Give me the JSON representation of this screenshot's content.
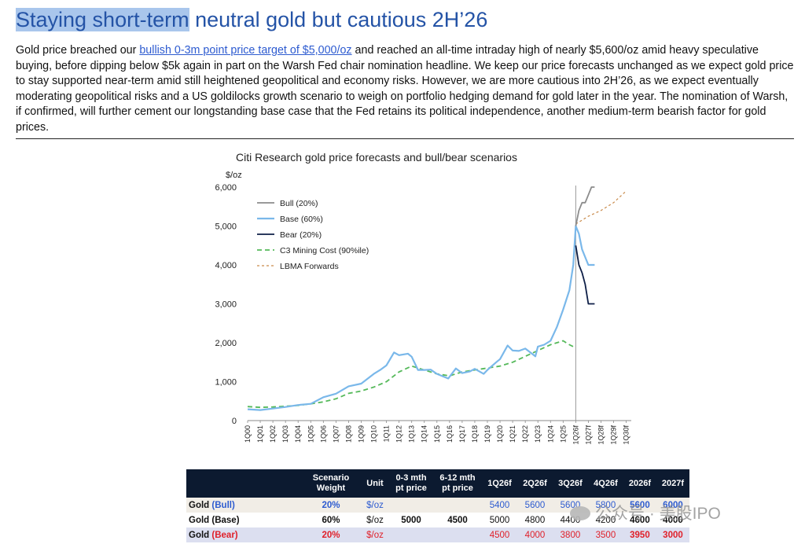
{
  "title": {
    "highlight": "Staying short-term",
    "rest": " neutral gold but cautious 2H’26"
  },
  "paragraph": {
    "pre": "Gold price breached our ",
    "link": "bullish 0-3m point price target of $5,000/oz",
    "post": " and reached an all-time intraday high of nearly $5,600/oz amid heavy speculative buying, before dipping below $5k again in part on the Warsh Fed chair nomination headline. We keep our price forecasts unchanged as we expect gold price to stay supported near-term amid still heightened geopolitical and economy risks. However, we are more cautious into 2H’26, as we expect eventually moderating geopolitical risks and a US goldilocks growth scenario to weigh on portfolio hedging demand for gold later in the year. The nomination of Warsh, if confirmed, will further cement our longstanding base case that the Fed retains its political independence, another medium-term bearish factor for gold prices."
  },
  "chart_data": {
    "type": "line",
    "title": "Citi Research gold price forecasts and bull/bear scenarios",
    "ylabel": "$/oz",
    "ylim": [
      0,
      6000
    ],
    "yticks": [
      "0",
      "1,000",
      "2,000",
      "3,000",
      "4,000",
      "5,000",
      "6,000"
    ],
    "x_tick_labels": [
      "1Q00",
      "1Q01",
      "1Q02",
      "1Q03",
      "1Q04",
      "1Q05",
      "1Q06",
      "1Q07",
      "1Q08",
      "1Q09",
      "1Q10",
      "1Q11",
      "1Q12",
      "1Q13",
      "1Q14",
      "1Q15",
      "1Q16",
      "1Q17",
      "1Q18",
      "1Q19",
      "1Q20",
      "1Q21",
      "1Q22",
      "1Q23",
      "1Q24",
      "1Q25",
      "1Q26f",
      "1Q27f",
      "1Q28f",
      "1Q29f",
      "1Q30f"
    ],
    "legend": [
      "Bull (20%)",
      "Base (60%)",
      "Bear (20%)",
      "C3 Mining Cost (90%ile)",
      "LBMA Forwards"
    ],
    "legend_position": "top-left",
    "series": [
      {
        "name": "Base (60%)",
        "color": "#7ab8ea",
        "style": "solid",
        "points": [
          [
            2000,
            290
          ],
          [
            2001,
            270
          ],
          [
            2002,
            310
          ],
          [
            2003,
            350
          ],
          [
            2004,
            400
          ],
          [
            2005,
            430
          ],
          [
            2006,
            600
          ],
          [
            2007,
            690
          ],
          [
            2008,
            880
          ],
          [
            2009,
            950
          ],
          [
            2010,
            1200
          ],
          [
            2010.5,
            1300
          ],
          [
            2011,
            1420
          ],
          [
            2011.6,
            1750
          ],
          [
            2012,
            1680
          ],
          [
            2012.7,
            1720
          ],
          [
            2013,
            1640
          ],
          [
            2013.5,
            1300
          ],
          [
            2014,
            1300
          ],
          [
            2014.5,
            1310
          ],
          [
            2015,
            1200
          ],
          [
            2015.9,
            1080
          ],
          [
            2016.5,
            1340
          ],
          [
            2017,
            1220
          ],
          [
            2017.6,
            1260
          ],
          [
            2018,
            1330
          ],
          [
            2018.7,
            1200
          ],
          [
            2019,
            1300
          ],
          [
            2019.7,
            1500
          ],
          [
            2020,
            1580
          ],
          [
            2020.6,
            1930
          ],
          [
            2021,
            1800
          ],
          [
            2021.5,
            1790
          ],
          [
            2022,
            1850
          ],
          [
            2022.8,
            1650
          ],
          [
            2023,
            1900
          ],
          [
            2023.5,
            1950
          ],
          [
            2024,
            2050
          ],
          [
            2024.5,
            2400
          ],
          [
            2025,
            2850
          ],
          [
            2025.5,
            3350
          ],
          [
            2025.8,
            4000
          ],
          [
            2026,
            5000
          ],
          [
            2026.25,
            4800
          ],
          [
            2026.5,
            4400
          ],
          [
            2026.75,
            4200
          ],
          [
            2027,
            4000
          ],
          [
            2027.5,
            4000
          ]
        ]
      },
      {
        "name": "Bull (20%)",
        "color": "#8c8c8c",
        "style": "solid",
        "points": [
          [
            2026,
            5000
          ],
          [
            2026.25,
            5400
          ],
          [
            2026.5,
            5600
          ],
          [
            2026.75,
            5600
          ],
          [
            2027,
            5800
          ],
          [
            2027.25,
            6000
          ],
          [
            2027.5,
            6000
          ]
        ]
      },
      {
        "name": "Bear (20%)",
        "color": "#0e1f47",
        "style": "solid",
        "points": [
          [
            2026,
            4500
          ],
          [
            2026.25,
            4000
          ],
          [
            2026.5,
            3800
          ],
          [
            2026.75,
            3500
          ],
          [
            2027,
            3000
          ],
          [
            2027.5,
            3000
          ]
        ]
      },
      {
        "name": "C3 Mining Cost (90%ile)",
        "color": "#55b95a",
        "style": "dashed",
        "points": [
          [
            2000,
            360
          ],
          [
            2001,
            340
          ],
          [
            2002,
            350
          ],
          [
            2003,
            370
          ],
          [
            2004,
            390
          ],
          [
            2005,
            430
          ],
          [
            2006,
            480
          ],
          [
            2007,
            560
          ],
          [
            2008,
            700
          ],
          [
            2009,
            760
          ],
          [
            2010,
            860
          ],
          [
            2011,
            1000
          ],
          [
            2012,
            1250
          ],
          [
            2013,
            1400
          ],
          [
            2014,
            1300
          ],
          [
            2015,
            1200
          ],
          [
            2016,
            1150
          ],
          [
            2017,
            1250
          ],
          [
            2018,
            1300
          ],
          [
            2019,
            1350
          ],
          [
            2020,
            1400
          ],
          [
            2021,
            1500
          ],
          [
            2022,
            1650
          ],
          [
            2023,
            1800
          ],
          [
            2024,
            1950
          ],
          [
            2025,
            2050
          ],
          [
            2025.5,
            1950
          ],
          [
            2025.8,
            1900
          ]
        ]
      },
      {
        "name": "LBMA Forwards",
        "color": "#c98a4a",
        "style": "dotted",
        "points": [
          [
            2026,
            5050
          ],
          [
            2027,
            5250
          ],
          [
            2028,
            5400
          ],
          [
            2029,
            5600
          ],
          [
            2030,
            5900
          ]
        ]
      }
    ],
    "forecast_marker_x": 2026
  },
  "table": {
    "headers": [
      "",
      "Scenario Weight",
      "Unit",
      "0-3 mth pt price",
      "6-12 mth pt price",
      "1Q26f",
      "2Q26f",
      "3Q26f",
      "4Q26f",
      "2026f",
      "2027f"
    ],
    "rows": [
      {
        "label": "Gold",
        "tag": "(Bull)",
        "weight": "20%",
        "unit": "$/oz",
        "p03": "",
        "p612": "",
        "q1": "5400",
        "q2": "5600",
        "q3": "5600",
        "q4": "5800",
        "y26": "5600",
        "y27": "6000"
      },
      {
        "label": "Gold (Base)",
        "tag": "",
        "weight": "60%",
        "unit": "$/oz",
        "p03": "5000",
        "p612": "4500",
        "q1": "5000",
        "q2": "4800",
        "q3": "4400",
        "q4": "4200",
        "y26": "4600",
        "y27": "4000"
      },
      {
        "label": "Gold",
        "tag": "(Bear)",
        "weight": "20%",
        "unit": "$/oz",
        "p03": "",
        "p612": "",
        "q1": "4500",
        "q2": "4000",
        "q3": "3800",
        "q4": "3500",
        "y26": "3950",
        "y27": "3000"
      }
    ]
  },
  "watermark": "公众号 · 美股IPO"
}
